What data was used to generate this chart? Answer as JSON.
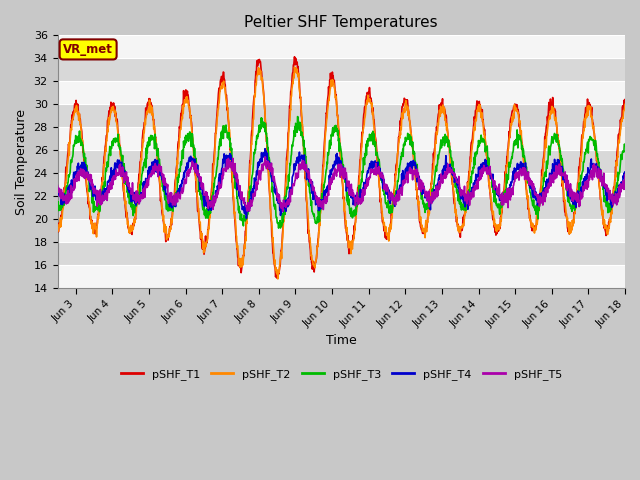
{
  "title": "Peltier SHF Temperatures",
  "xlabel": "Time",
  "ylabel": "Soil Temperature",
  "ylim": [
    14,
    36
  ],
  "yticks": [
    14,
    16,
    18,
    20,
    22,
    24,
    26,
    28,
    30,
    32,
    34,
    36
  ],
  "line_colors": [
    "#dd0000",
    "#ff8800",
    "#00bb00",
    "#0000cc",
    "#aa00aa"
  ],
  "line_labels": [
    "pSHF_T1",
    "pSHF_T2",
    "pSHF_T3",
    "pSHF_T4",
    "pSHF_T5"
  ],
  "vr_label": "VR_met",
  "vr_box_color": "#ffff00",
  "vr_text_color": "#800000",
  "fig_bg": "#c8c8c8",
  "plot_bg": "#e0e0e0",
  "n_points": 1500,
  "t_start": 2.5,
  "t_end": 18.0,
  "xlim_start": 2.5,
  "xlim_end": 18.0,
  "xtick_labels": [
    "Jun 3",
    "Jun 4",
    "Jun 5",
    "Jun 6",
    "Jun 7",
    "Jun 8",
    "Jun 9",
    "Jun 10",
    "Jun 11",
    "Jun 12",
    "Jun 13",
    "Jun 14",
    "Jun 15",
    "Jun 16",
    "Jun 17",
    "Jun 18"
  ],
  "xtick_positions": [
    3,
    4,
    5,
    6,
    7,
    8,
    9,
    10,
    11,
    12,
    13,
    14,
    15,
    16,
    17,
    18
  ]
}
